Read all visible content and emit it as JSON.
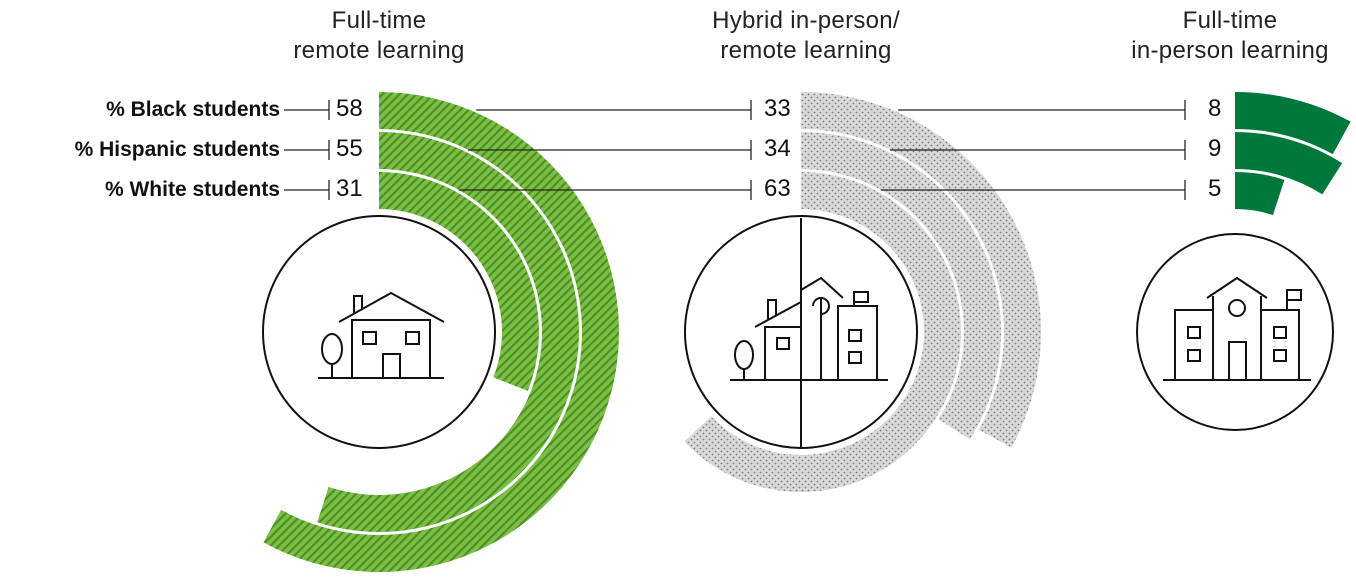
{
  "chart_data": {
    "type": "radial-bar",
    "groups": [
      {
        "title_line1": "Full-time",
        "title_line2": "remote learning",
        "values": [
          58,
          55,
          31
        ],
        "fill": "hatched-green"
      },
      {
        "title_line1": "Hybrid in-person/",
        "title_line2": "remote learning",
        "values": [
          33,
          34,
          63
        ],
        "fill": "dotted-gray"
      },
      {
        "title_line1": "Full-time",
        "title_line2": "in-person learning",
        "values": [
          8,
          9,
          5
        ],
        "fill": "solid-dark-green"
      }
    ],
    "series": [
      {
        "name": "% Black students"
      },
      {
        "name": "% Hispanic students"
      },
      {
        "name": "% White students"
      }
    ],
    "value_unit": "%",
    "max_value": 100
  },
  "icons": [
    "house-icon",
    "hybrid-house-school-icon",
    "school-icon"
  ],
  "colors": {
    "remote_green": "#7bc043",
    "remote_stripe": "#4f8f2a",
    "hybrid_gray": "#d6d6d6",
    "hybrid_dot": "#8c8c8c",
    "inperson_green": "#00783c",
    "text": "#1a1a1a"
  }
}
